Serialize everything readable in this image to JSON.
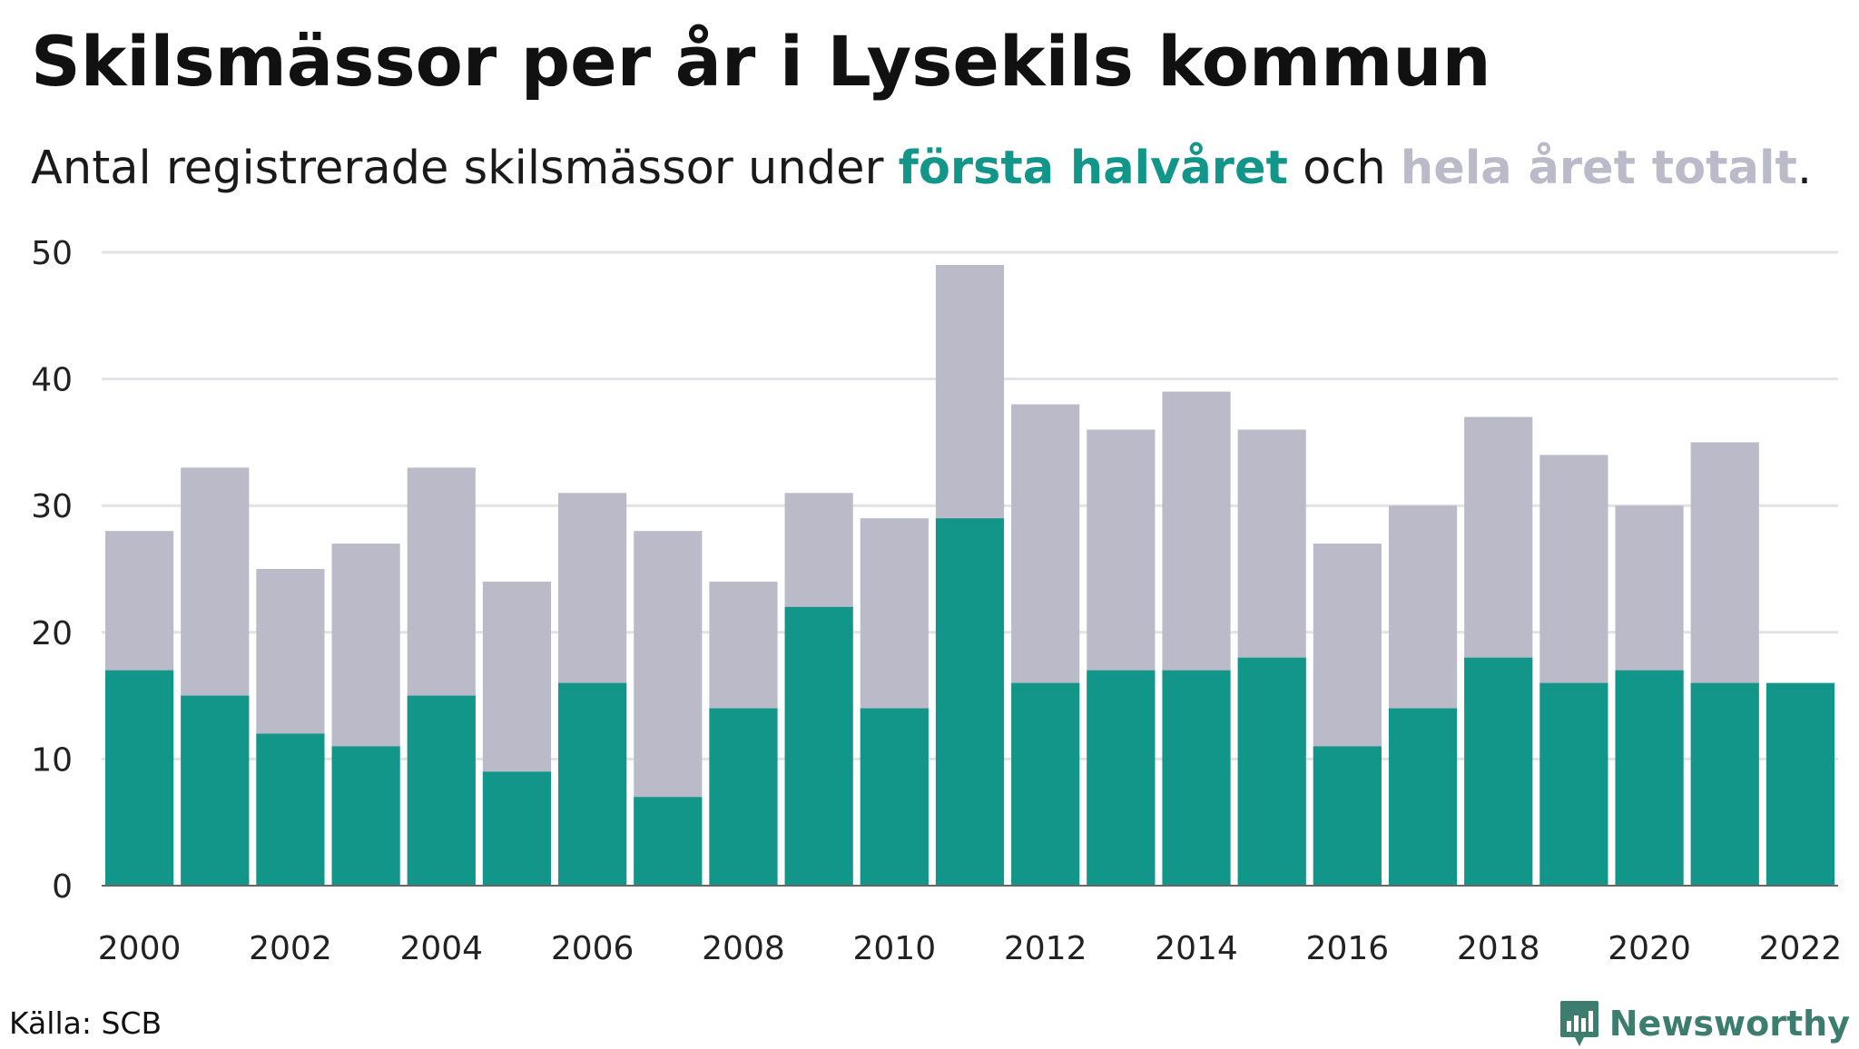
{
  "header": {
    "title": "Skilsmässor per år i Lysekils kommun",
    "subtitle_pre": "Antal registrerade skilsmässor under ",
    "subtitle_series1": "första halvåret",
    "subtitle_mid": " och ",
    "subtitle_series2": "hela året totalt",
    "subtitle_post": "."
  },
  "footer": {
    "source": "Källa: SCB",
    "brand": "Newsworthy"
  },
  "colors": {
    "first_half": "#13968a",
    "full_year": "#bbbac8",
    "grid": "#e2e2e6",
    "axis": "#666666"
  },
  "chart_data": {
    "type": "bar",
    "title": "Skilsmässor per år i Lysekils kommun",
    "subtitle": "Antal registrerade skilsmässor under första halvåret och hela året totalt.",
    "categories": [
      2000,
      2001,
      2002,
      2003,
      2004,
      2005,
      2006,
      2007,
      2008,
      2009,
      2010,
      2011,
      2012,
      2013,
      2014,
      2015,
      2016,
      2017,
      2018,
      2019,
      2020,
      2021,
      2022
    ],
    "x_tick_labels": [
      "2000",
      "2002",
      "2004",
      "2006",
      "2008",
      "2010",
      "2012",
      "2014",
      "2016",
      "2018",
      "2020",
      "2022"
    ],
    "series": [
      {
        "name": "hela året totalt",
        "values": [
          28,
          33,
          25,
          27,
          33,
          24,
          31,
          28,
          24,
          31,
          29,
          49,
          38,
          36,
          39,
          36,
          27,
          30,
          37,
          34,
          30,
          35,
          null
        ]
      },
      {
        "name": "första halvåret",
        "values": [
          17,
          15,
          12,
          11,
          15,
          9,
          16,
          7,
          14,
          22,
          14,
          29,
          16,
          17,
          17,
          18,
          11,
          14,
          18,
          16,
          17,
          16,
          16
        ]
      }
    ],
    "ylim": [
      0,
      50
    ],
    "y_ticks": [
      0,
      10,
      20,
      30,
      40,
      50
    ],
    "grid": true,
    "xlabel": "",
    "ylabel": ""
  }
}
